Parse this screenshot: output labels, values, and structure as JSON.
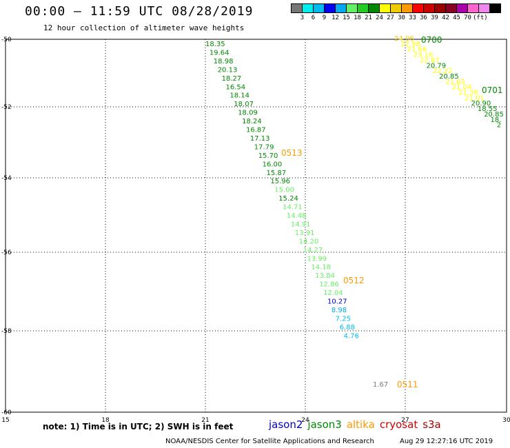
{
  "title": "00:00 – 11:59 UTC 08/28/2019",
  "subtitle": "12 hour collection of altimeter wave heights",
  "legend": {
    "colors": [
      "#777777",
      "#00eeee",
      "#00bbee",
      "#0000ee",
      "#00aaee",
      "#66ee66",
      "#22cc22",
      "#008800",
      "#ffff00",
      "#eecc00",
      "#ff9900",
      "#ff0000",
      "#cc0000",
      "#990000",
      "#880022",
      "#aa00aa",
      "#ff66cc",
      "#ee88ee",
      "#000000"
    ],
    "labels": [
      "3",
      "6",
      "9",
      "12",
      "15",
      "18",
      "21",
      "24",
      "27",
      "30",
      "33",
      "36",
      "39",
      "42",
      "45",
      "70",
      "(ft)"
    ]
  },
  "map": {
    "lon_ticks": [
      "15",
      "18",
      "21",
      "24",
      "27",
      "30"
    ],
    "lat_ticks": [
      "-50",
      "-52",
      "-54",
      "-56",
      "-58",
      "-60"
    ],
    "tracks": [
      {
        "color_key": "main",
        "points": [
          {
            "v": "18.35",
            "c": "#008800"
          },
          {
            "v": "19.64",
            "c": "#008800"
          },
          {
            "v": "18.98",
            "c": "#008800"
          },
          {
            "v": "20.13",
            "c": "#008800"
          },
          {
            "v": "18.27",
            "c": "#008800"
          },
          {
            "v": "16.54",
            "c": "#008800"
          },
          {
            "v": "18.14",
            "c": "#008800"
          },
          {
            "v": "18.07",
            "c": "#008800"
          },
          {
            "v": "18.09",
            "c": "#008800"
          },
          {
            "v": "18.24",
            "c": "#008800"
          },
          {
            "v": "16.87",
            "c": "#008800"
          },
          {
            "v": "17.13",
            "c": "#008800"
          },
          {
            "v": "17.79",
            "c": "#008800"
          },
          {
            "v": "15.70",
            "c": "#008800"
          },
          {
            "v": "16.00",
            "c": "#008800"
          },
          {
            "v": "15.87",
            "c": "#008800"
          },
          {
            "v": "15.96",
            "c": "#008800"
          },
          {
            "v": "15.00",
            "c": "#66ee66"
          },
          {
            "v": "15.24",
            "c": "#008800"
          },
          {
            "v": "14.71",
            "c": "#66ee66"
          },
          {
            "v": "14.48",
            "c": "#66ee66"
          },
          {
            "v": "14.91",
            "c": "#66ee66"
          },
          {
            "v": "13.91",
            "c": "#66ee66"
          },
          {
            "v": "14.20",
            "c": "#66ee66"
          },
          {
            "v": "14.27",
            "c": "#66ee66"
          },
          {
            "v": "13.99",
            "c": "#66ee66"
          },
          {
            "v": "14.18",
            "c": "#66ee66"
          },
          {
            "v": "13.84",
            "c": "#66ee66"
          },
          {
            "v": "12.86",
            "c": "#66ee66"
          },
          {
            "v": "12.04",
            "c": "#66ee66"
          },
          {
            "v": "10.27",
            "c": "#0000cc"
          },
          {
            "v": "8.98",
            "c": "#00aaee"
          },
          {
            "v": "7.25",
            "c": "#00bbee"
          },
          {
            "v": "6.88",
            "c": "#00bbee"
          },
          {
            "v": "4.76",
            "c": "#00bbee"
          }
        ]
      }
    ],
    "upper_track": [
      {
        "v": "24.06",
        "c": "#eecc00"
      },
      {
        "v": "22.98",
        "c": "#ffff00"
      },
      {
        "v": "21.66",
        "c": "#ffff00"
      },
      {
        "v": "23.16",
        "c": "#ffff00"
      },
      {
        "v": "22.87",
        "c": "#ffff00"
      },
      {
        "v": "20.79",
        "c": "#008800"
      },
      {
        "v": "22.22",
        "c": "#ffff00"
      },
      {
        "v": "20.85",
        "c": "#008800"
      },
      {
        "v": "21.65",
        "c": "#ffff00"
      },
      {
        "v": "21.04",
        "c": "#ffff00"
      },
      {
        "v": "21.38",
        "c": "#ffff00"
      },
      {
        "v": "21.01",
        "c": "#ffff00"
      },
      {
        "v": "20.90",
        "c": "#008800"
      },
      {
        "v": "18.55",
        "c": "#008800"
      },
      {
        "v": "20.85",
        "c": "#008800"
      },
      {
        "v": "18.",
        "c": "#008800"
      },
      {
        "v": "2",
        "c": "#008800"
      }
    ],
    "isolated": [
      {
        "v": "1.67",
        "c": "#777777"
      }
    ],
    "pass_labels": [
      {
        "text": "0513",
        "c": "#ff9900"
      },
      {
        "text": "0512",
        "c": "#ff9900"
      },
      {
        "text": "0511",
        "c": "#ff9900"
      },
      {
        "text": "0700",
        "c": "#008800"
      },
      {
        "text": "0701",
        "c": "#008800"
      }
    ]
  },
  "note": "note: 1) Time is in UTC; 2) SWH is in feet",
  "satellites": [
    {
      "name": "jason2",
      "color": "#0000cc"
    },
    {
      "name": "jason3",
      "color": "#008800"
    },
    {
      "name": "altika",
      "color": "#ff9900"
    },
    {
      "name": "cryosat",
      "color": "#cc0000"
    },
    {
      "name": "s3a",
      "color": "#990000"
    }
  ],
  "credit": "NOAA/NESDIS Center for Satellite Applications and Research",
  "timestamp": "Aug 29 12:27:16 UTC 2019"
}
